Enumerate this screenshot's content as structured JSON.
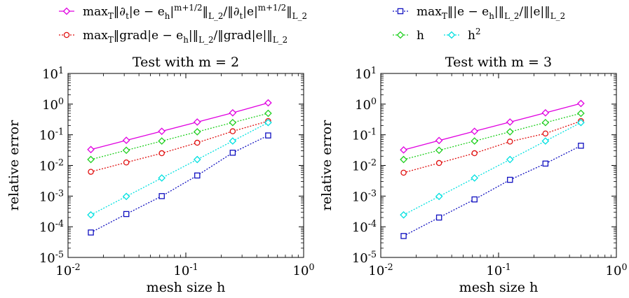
{
  "legend": {
    "entries": [
      {
        "series_id": "time_deriv",
        "text": "max_T‖∂_t|e − e_h|^{m+1/2}‖_{L_2}/‖∂_t|e|^{m+1/2}‖_{L_2}"
      },
      {
        "series_id": "l2",
        "text": "max_T‖|e − e_h|‖_{L_2}/‖|e|‖_{L_2}"
      },
      {
        "series_id": "grad",
        "text": "max_T‖grad|e − e_h|‖_{L_2}/‖grad|e|‖_{L_2}"
      },
      {
        "series_id": "h",
        "text": "h"
      },
      {
        "series_id": "h2",
        "text": "h^2"
      }
    ]
  },
  "chart_data": [
    {
      "type": "line",
      "title": "Test with m = 2",
      "xlabel": "mesh size h",
      "ylabel": "relative error",
      "x_scale": "log",
      "y_scale": "log",
      "xlim": [
        0.01,
        1
      ],
      "ylim": [
        1e-05,
        10
      ],
      "x_tick_labels": [
        "10^{-2}",
        "10^{-1}",
        "10^{0}"
      ],
      "y_tick_labels": [
        "10^{-5}",
        "10^{-4}",
        "10^{-3}",
        "10^{-2}",
        "10^{-1}",
        "10^{0}",
        "10^{1}"
      ],
      "grid": false,
      "x": [
        0.015625,
        0.03125,
        0.0625,
        0.125,
        0.25,
        0.5
      ],
      "series": [
        {
          "id": "time_deriv",
          "color": "#e000e0",
          "marker": "diamond",
          "line": "solid",
          "values": [
            0.033,
            0.066,
            0.13,
            0.26,
            0.52,
            1.1
          ]
        },
        {
          "id": "l2",
          "color": "#1010c0",
          "marker": "square",
          "line": "dotted",
          "values": [
            6.5e-05,
            0.00026,
            0.001,
            0.0047,
            0.026,
            0.095
          ]
        },
        {
          "id": "grad",
          "color": "#e01010",
          "marker": "circle",
          "line": "dotted",
          "values": [
            0.0062,
            0.0125,
            0.025,
            0.055,
            0.13,
            0.28
          ]
        },
        {
          "id": "h",
          "color": "#20d020",
          "marker": "diamond",
          "line": "dotted",
          "values": [
            0.015625,
            0.03125,
            0.0625,
            0.125,
            0.25,
            0.5
          ]
        },
        {
          "id": "h2",
          "color": "#00e0e0",
          "marker": "diamond",
          "line": "dotted",
          "values": [
            0.000244,
            0.000977,
            0.0039,
            0.0156,
            0.0625,
            0.25
          ]
        }
      ]
    },
    {
      "type": "line",
      "title": "Test with m = 3",
      "xlabel": "mesh size h",
      "ylabel": "relative error",
      "x_scale": "log",
      "y_scale": "log",
      "xlim": [
        0.01,
        1
      ],
      "ylim": [
        1e-05,
        10
      ],
      "x_tick_labels": [
        "10^{-2}",
        "10^{-1}",
        "10^{0}"
      ],
      "y_tick_labels": [
        "10^{-5}",
        "10^{-4}",
        "10^{-3}",
        "10^{-2}",
        "10^{-1}",
        "10^{0}",
        "10^{1}"
      ],
      "grid": false,
      "x": [
        0.015625,
        0.03125,
        0.0625,
        0.125,
        0.25,
        0.5
      ],
      "series": [
        {
          "id": "time_deriv",
          "color": "#e000e0",
          "marker": "diamond",
          "line": "solid",
          "values": [
            0.032,
            0.065,
            0.13,
            0.26,
            0.52,
            1.05
          ]
        },
        {
          "id": "l2",
          "color": "#1010c0",
          "marker": "square",
          "line": "dotted",
          "values": [
            5e-05,
            0.0002,
            0.00078,
            0.0034,
            0.0115,
            0.044
          ]
        },
        {
          "id": "grad",
          "color": "#e01010",
          "marker": "circle",
          "line": "dotted",
          "values": [
            0.0058,
            0.012,
            0.025,
            0.06,
            0.11,
            0.28
          ]
        },
        {
          "id": "h",
          "color": "#20d020",
          "marker": "diamond",
          "line": "dotted",
          "values": [
            0.015625,
            0.03125,
            0.0625,
            0.125,
            0.25,
            0.5
          ]
        },
        {
          "id": "h2",
          "color": "#00e0e0",
          "marker": "diamond",
          "line": "dotted",
          "values": [
            0.000244,
            0.000977,
            0.0039,
            0.0156,
            0.0625,
            0.25
          ]
        }
      ]
    }
  ]
}
